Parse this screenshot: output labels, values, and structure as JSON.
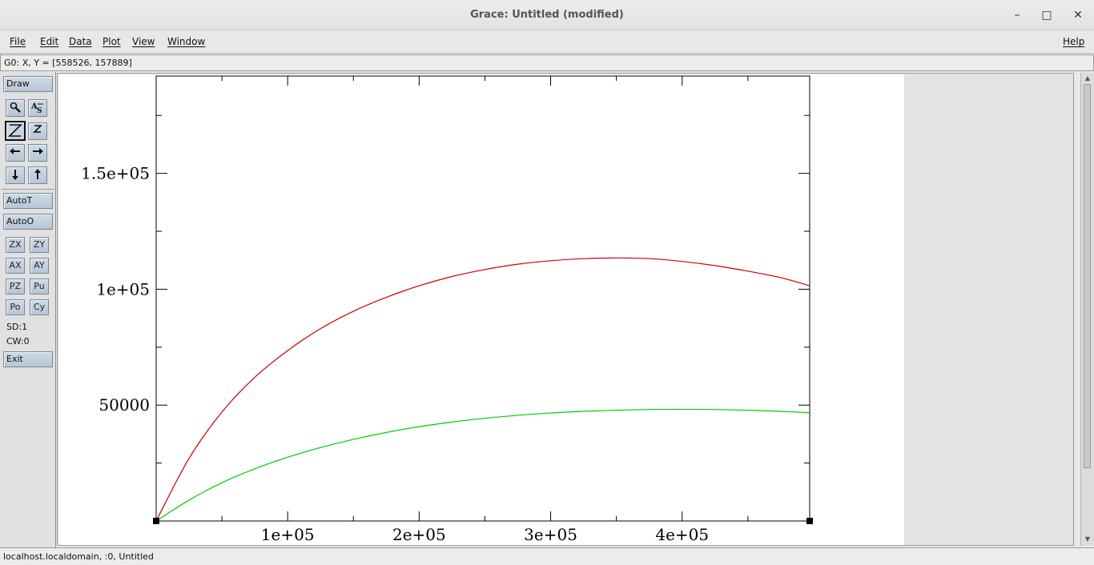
{
  "window": {
    "title": "Grace: Untitled (modified)",
    "minimize_glyph": "–",
    "maximize_glyph": "□",
    "close_glyph": "✕"
  },
  "menubar": {
    "items": [
      "File",
      "Edit",
      "Data",
      "Plot",
      "View",
      "Window"
    ],
    "help": "Help"
  },
  "location_bar": {
    "text": "G0: X, Y = [558526, 157889]"
  },
  "toolbar": {
    "draw": "Draw",
    "autot": "AutoT",
    "autoo": "AutoO",
    "zx": "ZX",
    "zy": "ZY",
    "ax": "AX",
    "ay": "AY",
    "pz": "PZ",
    "pu": "Pu",
    "po": "Po",
    "cy": "Cy",
    "sd": "SD:1",
    "cw": "CW:0",
    "exit": "Exit",
    "icons": [
      "zoom-icon",
      "text-icon",
      "zoom-z-icon",
      "zoom-out-z-icon",
      "arrow-left-icon",
      "arrow-right-icon",
      "arrow-down-icon",
      "arrow-up-icon"
    ]
  },
  "statusbar": {
    "text": "localhost.localdomain, :0, Untitled"
  },
  "chart_data": {
    "type": "line",
    "xlim": [
      0,
      497000
    ],
    "ylim": [
      0,
      192000
    ],
    "xticks": [
      100000,
      200000,
      300000,
      400000
    ],
    "xtick_labels": [
      "1e+05",
      "2e+05",
      "3e+05",
      "4e+05"
    ],
    "yticks": [
      50000,
      100000,
      150000
    ],
    "ytick_labels": [
      "50000",
      "1e+05",
      "1.5e+05"
    ],
    "grid": false,
    "series": [
      {
        "color": "#cc0000",
        "x": [
          0,
          25000,
          50000,
          75000,
          100000,
          125000,
          150000,
          175000,
          200000,
          225000,
          250000,
          275000,
          300000,
          325000,
          350000,
          375000,
          400000,
          425000,
          450000,
          475000,
          497000
        ],
        "y": [
          0,
          27000,
          47000,
          62000,
          73500,
          83000,
          90500,
          96500,
          101500,
          105500,
          108500,
          110800,
          112300,
          113200,
          113500,
          113200,
          112000,
          110200,
          107800,
          105000,
          101500
        ]
      },
      {
        "color": "#00cc00",
        "x": [
          0,
          25000,
          50000,
          75000,
          100000,
          125000,
          150000,
          175000,
          200000,
          225000,
          250000,
          275000,
          300000,
          325000,
          350000,
          375000,
          400000,
          425000,
          450000,
          475000,
          497000
        ],
        "y": [
          0,
          9000,
          16500,
          22500,
          27500,
          31700,
          35200,
          38200,
          40700,
          42700,
          44300,
          45600,
          46600,
          47300,
          47800,
          48100,
          48200,
          48100,
          47800,
          47300,
          46700
        ]
      }
    ]
  }
}
